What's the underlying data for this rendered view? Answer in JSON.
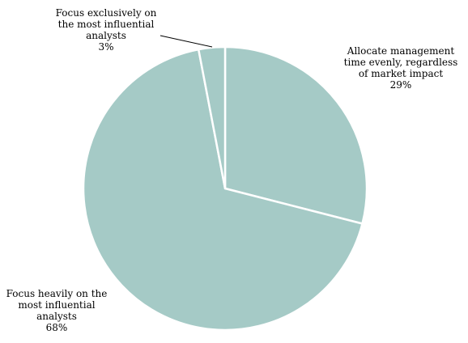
{
  "chart_data": {
    "type": "pie",
    "title": "",
    "start_angle_deg": 0,
    "direction": "clockwise",
    "slices": [
      {
        "label_lines": [
          "Allocate management",
          "time evenly, regardless",
          "of market impact"
        ],
        "value": 29,
        "value_label": "29%",
        "color": "#a5cac6"
      },
      {
        "label_lines": [
          "Focus heavily on the",
          "most influential",
          "analysts"
        ],
        "value": 68,
        "value_label": "68%",
        "color": "#a5cac6"
      },
      {
        "label_lines": [
          "Focus exclusively on",
          "the most influential",
          "analysts"
        ],
        "value": 3,
        "value_label": "3%",
        "color": "#a5cac6"
      }
    ],
    "slice_border_color": "#ffffff",
    "leader_line_color": "#000000"
  }
}
